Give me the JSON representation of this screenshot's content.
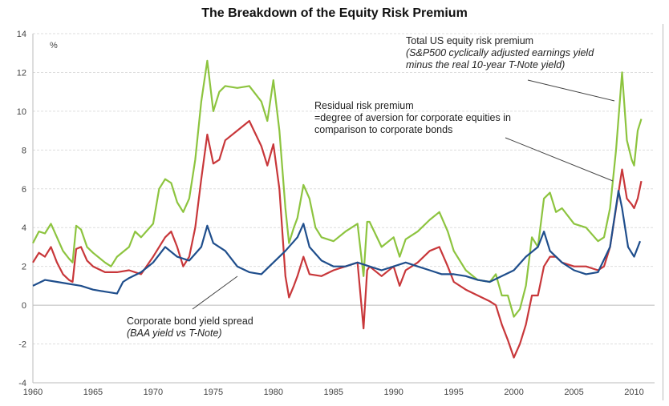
{
  "chart_data": {
    "type": "line",
    "title": "The Breakdown of the Equity Risk Premium",
    "ylabel": "%",
    "xlim": [
      1960,
      2011.7
    ],
    "ylim": [
      -4,
      14
    ],
    "yticks": [
      -4,
      -2,
      0,
      2,
      4,
      6,
      8,
      10,
      12,
      14
    ],
    "xticks": [
      1960,
      1965,
      1970,
      1975,
      1980,
      1985,
      1990,
      1995,
      2000,
      2005,
      2010
    ],
    "grid": true,
    "colors": {
      "total": "#8dc43f",
      "residual": "#c8373a",
      "spread": "#1f4e8c"
    },
    "series": [
      {
        "key": "total",
        "x": [
          1960,
          1960.5,
          1961,
          1961.5,
          1962,
          1962.5,
          1963,
          1963.3,
          1963.6,
          1964,
          1964.5,
          1965,
          1966,
          1966.5,
          1967,
          1968,
          1968.5,
          1969,
          1970,
          1970.5,
          1971,
          1971.5,
          1972,
          1972.5,
          1973,
          1973.5,
          1974,
          1974.5,
          1975,
          1975.5,
          1976,
          1977,
          1978,
          1979,
          1979.5,
          1980,
          1980.5,
          1981,
          1981.3,
          1981.7,
          1982,
          1982.5,
          1983,
          1983.5,
          1984,
          1985,
          1986,
          1987,
          1987.5,
          1987.8,
          1988,
          1989,
          1990,
          1990.5,
          1991,
          1992,
          1993,
          1993.8,
          1994.5,
          1995,
          1996,
          1997,
          1998,
          1998.5,
          1999,
          1999.5,
          2000,
          2000.5,
          2001,
          2001.5,
          2002,
          2002.5,
          2003,
          2003.5,
          2004,
          2005,
          2006,
          2007,
          2007.5,
          2008,
          2008.5,
          2009,
          2009.4,
          2009.8,
          2010,
          2010.3,
          2010.6
        ],
        "values": [
          3.2,
          3.8,
          3.7,
          4.2,
          3.5,
          2.8,
          2.4,
          2.2,
          4.1,
          3.9,
          3.0,
          2.7,
          2.2,
          2.0,
          2.5,
          3.0,
          3.8,
          3.5,
          4.2,
          6.0,
          6.5,
          6.3,
          5.3,
          4.8,
          5.5,
          7.5,
          10.5,
          12.6,
          10.0,
          11.0,
          11.3,
          11.2,
          11.3,
          10.5,
          9.5,
          11.6,
          9.0,
          5.0,
          3.2,
          4.0,
          4.5,
          6.2,
          5.5,
          4.0,
          3.5,
          3.3,
          3.8,
          4.2,
          1.5,
          4.3,
          4.3,
          3.0,
          3.5,
          2.5,
          3.4,
          3.8,
          4.4,
          4.8,
          3.8,
          2.8,
          1.8,
          1.3,
          1.2,
          1.6,
          0.5,
          0.5,
          -0.6,
          -0.2,
          1.0,
          3.5,
          3.0,
          5.5,
          5.8,
          4.8,
          5.0,
          4.2,
          4.0,
          3.3,
          3.5,
          5.0,
          8.0,
          12.0,
          8.5,
          7.5,
          7.2,
          9.0,
          9.6
        ]
      },
      {
        "key": "residual",
        "x": [
          1960,
          1960.5,
          1961,
          1961.5,
          1962,
          1962.5,
          1963,
          1963.3,
          1963.6,
          1964,
          1964.5,
          1965,
          1966,
          1967,
          1968,
          1969,
          1970,
          1970.5,
          1971,
          1971.5,
          1972,
          1972.5,
          1973,
          1973.5,
          1974,
          1974.5,
          1975,
          1975.5,
          1976,
          1977,
          1978,
          1979,
          1979.5,
          1980,
          1980.5,
          1981,
          1981.3,
          1981.7,
          1982,
          1982.5,
          1983,
          1984,
          1985,
          1986,
          1987,
          1987.5,
          1987.8,
          1988,
          1989,
          1990,
          1990.5,
          1991,
          1992,
          1993,
          1993.8,
          1994.5,
          1995,
          1996,
          1997,
          1998,
          1998.5,
          1999,
          1999.5,
          2000,
          2000.5,
          2001,
          2001.5,
          2002,
          2002.5,
          2003,
          2003.5,
          2004,
          2005,
          2006,
          2007,
          2007.5,
          2008,
          2008.5,
          2009,
          2009.4,
          2009.8,
          2010,
          2010.3,
          2010.6
        ],
        "values": [
          2.2,
          2.7,
          2.5,
          3.0,
          2.2,
          1.6,
          1.3,
          1.2,
          2.9,
          3.0,
          2.3,
          2.0,
          1.7,
          1.7,
          1.8,
          1.6,
          2.5,
          3.0,
          3.5,
          3.8,
          3.0,
          2.0,
          2.5,
          4.0,
          6.5,
          8.8,
          7.3,
          7.5,
          8.5,
          9.0,
          9.5,
          8.2,
          7.2,
          8.3,
          6.0,
          1.5,
          0.4,
          1.0,
          1.5,
          2.5,
          1.6,
          1.5,
          1.8,
          2.0,
          2.2,
          -1.2,
          1.8,
          2.0,
          1.5,
          2.0,
          1.0,
          1.8,
          2.2,
          2.8,
          3.0,
          2.0,
          1.2,
          0.8,
          0.5,
          0.2,
          0.0,
          -1.0,
          -1.8,
          -2.7,
          -2.0,
          -1.0,
          0.5,
          0.5,
          2.0,
          2.5,
          2.5,
          2.2,
          2.0,
          2.0,
          1.8,
          2.0,
          3.0,
          5.0,
          7.0,
          5.5,
          5.2,
          5.0,
          5.5,
          6.4
        ]
      },
      {
        "key": "spread",
        "x": [
          1960,
          1961,
          1962,
          1963,
          1964,
          1965,
          1966,
          1967,
          1967.5,
          1968,
          1969,
          1970,
          1971,
          1972,
          1973,
          1974,
          1974.5,
          1975,
          1976,
          1977,
          1978,
          1979,
          1980,
          1981,
          1982,
          1982.5,
          1983,
          1984,
          1985,
          1986,
          1987,
          1988,
          1989,
          1990,
          1991,
          1992,
          1993,
          1994,
          1995,
          1996,
          1997,
          1998,
          1999,
          2000,
          2001,
          2002,
          2002.5,
          2003,
          2004,
          2005,
          2006,
          2007,
          2008,
          2008.7,
          2009,
          2009.5,
          2010,
          2010.5
        ],
        "values": [
          1.0,
          1.3,
          1.2,
          1.1,
          1.0,
          0.8,
          0.7,
          0.6,
          1.2,
          1.4,
          1.7,
          2.2,
          3.0,
          2.5,
          2.3,
          3.0,
          4.1,
          3.2,
          2.8,
          2.0,
          1.7,
          1.6,
          2.2,
          2.8,
          3.5,
          4.2,
          3.0,
          2.3,
          2.0,
          2.0,
          2.2,
          2.0,
          1.8,
          2.0,
          2.2,
          2.0,
          1.8,
          1.6,
          1.6,
          1.5,
          1.3,
          1.2,
          1.5,
          1.8,
          2.5,
          3.0,
          3.8,
          2.8,
          2.2,
          1.8,
          1.6,
          1.7,
          3.0,
          5.9,
          5.0,
          3.0,
          2.5,
          3.3
        ]
      }
    ],
    "annotations": {
      "total": {
        "line1": "Total US equity risk premium",
        "line2": "(S&P500 cyclically adjusted earnings yield",
        "line3": "minus the real 10-year T-Note yield)"
      },
      "residual": {
        "line1": "Residual risk premium",
        "line2": "=degree of aversion for corporate equities in",
        "line3": "comparison to corporate bonds"
      },
      "spread": {
        "line1": "Corporate bond yield spread",
        "line2": "(BAA yield vs T-Note)"
      }
    }
  }
}
